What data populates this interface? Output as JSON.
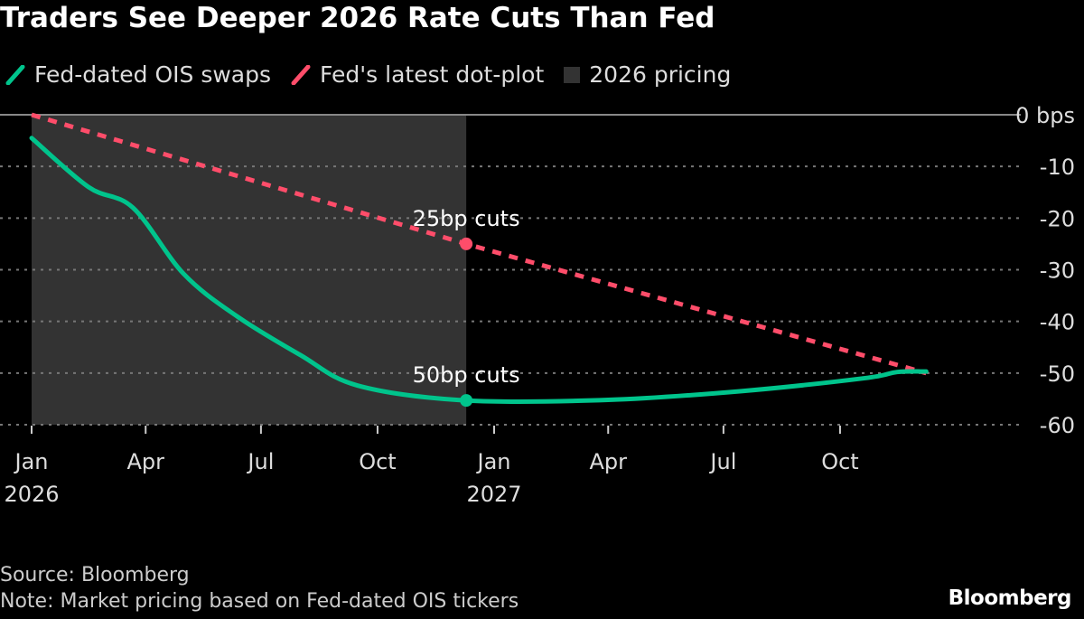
{
  "chart_data": {
    "type": "line",
    "title": "Traders See Deeper 2026 Rate Cuts Than Fed",
    "legend_position": "top-left",
    "grid": true,
    "ylim": [
      -60,
      0
    ],
    "yticks": [
      0,
      -10,
      -20,
      -30,
      -40,
      -50,
      -60
    ],
    "ytick_labels": [
      "0 bps",
      "-10",
      "-20",
      "-30",
      "-40",
      "-50",
      "-60"
    ],
    "xlim": [
      "2026-01-01",
      "2027-12-31"
    ],
    "xticks": [
      {
        "date": "2026-01-01",
        "label": "Jan",
        "sub": "2026"
      },
      {
        "date": "2026-04-01",
        "label": "Apr",
        "sub": ""
      },
      {
        "date": "2026-07-01",
        "label": "Jul",
        "sub": ""
      },
      {
        "date": "2026-10-01",
        "label": "Oct",
        "sub": ""
      },
      {
        "date": "2027-01-01",
        "label": "Jan",
        "sub": "2027"
      },
      {
        "date": "2027-04-01",
        "label": "Apr",
        "sub": ""
      },
      {
        "date": "2027-07-01",
        "label": "Jul",
        "sub": ""
      },
      {
        "date": "2027-10-01",
        "label": "Oct",
        "sub": ""
      }
    ],
    "shaded_region": {
      "name": "2026 pricing",
      "from": "2026-01-01",
      "to": "2026-12-10",
      "color": "#333333"
    },
    "series": [
      {
        "name": "Fed-dated OIS swaps",
        "color": "#00c48c",
        "style": "solid",
        "points": [
          [
            "2026-01-01",
            -4.5
          ],
          [
            "2026-02-15",
            -14
          ],
          [
            "2026-03-22",
            -18
          ],
          [
            "2026-05-01",
            -30.8
          ],
          [
            "2026-06-12",
            -39
          ],
          [
            "2026-08-01",
            -46.5
          ],
          [
            "2026-09-15",
            -52.4
          ],
          [
            "2026-12-10",
            -55.3
          ],
          [
            "2027-04-01",
            -55.2
          ],
          [
            "2027-07-15",
            -53.5
          ],
          [
            "2027-10-20",
            -51
          ],
          [
            "2027-11-15",
            -49.8
          ],
          [
            "2027-12-08",
            -49.7
          ]
        ]
      },
      {
        "name": "Fed's latest dot-plot",
        "color": "#ff4d6a",
        "style": "dashed",
        "points": [
          [
            "2026-01-01",
            0
          ],
          [
            "2026-12-10",
            -25
          ],
          [
            "2027-12-08",
            -50
          ]
        ]
      }
    ],
    "annotations": [
      {
        "text": "25bp cuts",
        "date": "2026-12-10",
        "value": -25,
        "series": 1
      },
      {
        "text": "50bp cuts",
        "date": "2026-12-10",
        "value": -55.3,
        "series": 0
      }
    ]
  },
  "footer": {
    "source": "Source: Bloomberg",
    "note": "Note: Market pricing based on Fed-dated OIS tickers",
    "logo": "Bloomberg"
  }
}
